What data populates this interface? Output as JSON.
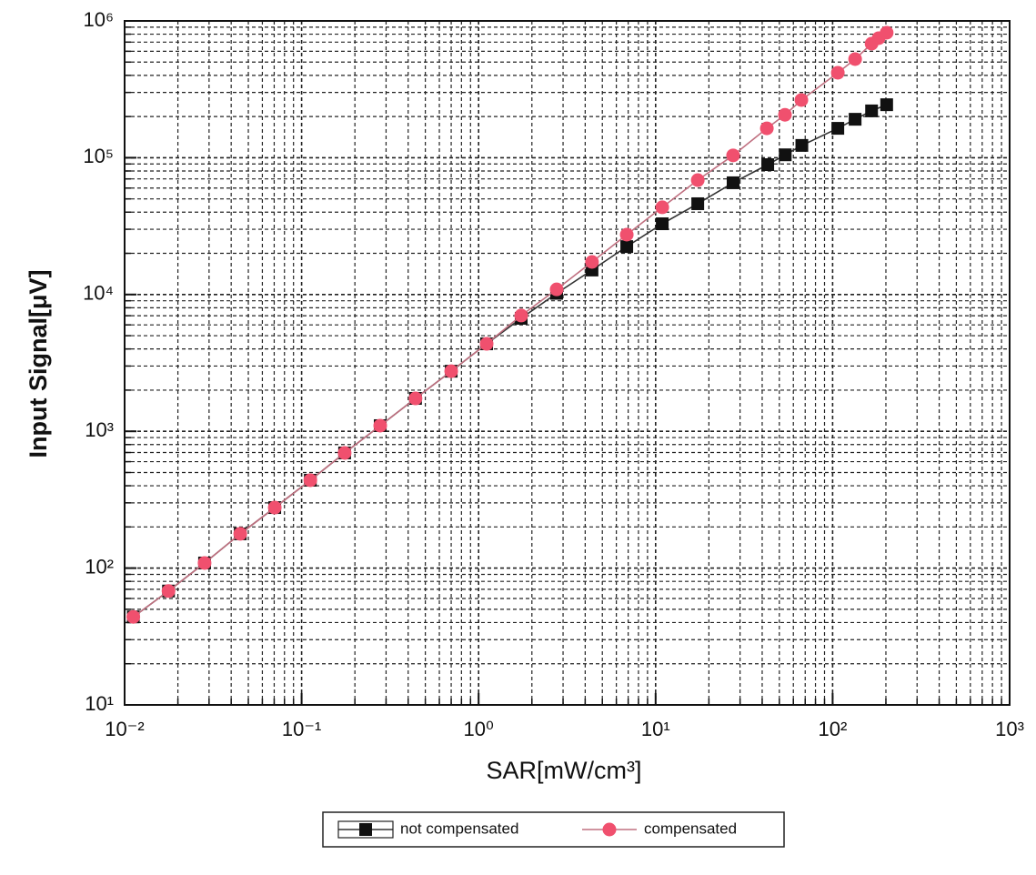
{
  "chart_data": {
    "type": "line",
    "x_label": "SAR[mW/cm³]",
    "y_label": "Input Signal[μV]",
    "xlog": true,
    "ylog": true,
    "grid": true,
    "minor_grid": true,
    "legend": "bottom",
    "xlim": [
      0.01,
      1000
    ],
    "ylim": [
      10,
      1000000
    ],
    "xticks": [
      {
        "value": 0.01,
        "label": "10⁻²"
      },
      {
        "value": 0.1,
        "label": "10⁻¹"
      },
      {
        "value": 1,
        "label": "10⁰"
      },
      {
        "value": 10,
        "label": "10¹"
      },
      {
        "value": 100,
        "label": "10²"
      },
      {
        "value": 1000,
        "label": "10³"
      }
    ],
    "yticks": [
      {
        "value": 10,
        "label": "10¹"
      },
      {
        "value": 100,
        "label": "10²"
      },
      {
        "value": 1000,
        "label": "10³"
      },
      {
        "value": 10000,
        "label": "10⁴"
      },
      {
        "value": 100000,
        "label": "10⁵"
      },
      {
        "value": 1000000,
        "label": "10⁶"
      }
    ],
    "series": [
      {
        "name": "not compensated",
        "color": "#111111",
        "line_color": "#333333",
        "marker": "square",
        "x": [
          0.0112,
          0.0177,
          0.0283,
          0.045,
          0.0705,
          0.112,
          0.175,
          0.278,
          0.44,
          0.7,
          1.11,
          1.74,
          2.76,
          4.37,
          6.87,
          10.9,
          17.3,
          27.4,
          43,
          54,
          67,
          107,
          134,
          166,
          202
        ],
        "values": [
          44,
          68,
          109,
          178,
          277,
          439,
          695,
          1100,
          1740,
          2750,
          4360,
          6700,
          10200,
          15100,
          22400,
          32900,
          46100,
          65600,
          89000,
          105000,
          123000,
          164000,
          191000,
          220000,
          244000
        ]
      },
      {
        "name": "compensated",
        "color": "#f0506e",
        "line_color": "#c07080",
        "marker": "circle",
        "x": [
          0.0112,
          0.0177,
          0.0283,
          0.045,
          0.0705,
          0.112,
          0.175,
          0.278,
          0.44,
          0.7,
          1.11,
          1.74,
          2.76,
          4.37,
          6.87,
          10.9,
          17.3,
          27.4,
          42.5,
          53.8,
          66.6,
          107,
          134,
          166,
          182,
          202
        ],
        "values": [
          44,
          68,
          109,
          178,
          277,
          439,
          695,
          1100,
          1740,
          2750,
          4360,
          7020,
          10900,
          17300,
          27400,
          43400,
          68600,
          104000,
          164000,
          206000,
          264000,
          418000,
          526000,
          682000,
          748000,
          820000
        ]
      }
    ]
  }
}
